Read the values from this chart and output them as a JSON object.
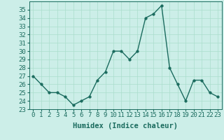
{
  "x": [
    0,
    1,
    2,
    3,
    4,
    5,
    6,
    7,
    8,
    9,
    10,
    11,
    12,
    13,
    14,
    15,
    16,
    17,
    18,
    19,
    20,
    21,
    22,
    23
  ],
  "y": [
    27,
    26,
    25,
    25,
    24.5,
    23.5,
    24,
    24.5,
    26.5,
    27.5,
    30,
    30,
    29,
    30,
    34,
    34.5,
    35.5,
    28,
    26,
    24,
    26.5,
    26.5,
    25,
    24.5
  ],
  "line_color": "#1a6b5e",
  "marker": "o",
  "marker_size": 2.5,
  "background_color": "#cceee8",
  "grid_color": "#aaddcc",
  "xlabel": "Humidex (Indice chaleur)",
  "ylim": [
    23,
    36
  ],
  "xlim": [
    -0.5,
    23.5
  ],
  "yticks": [
    23,
    24,
    25,
    26,
    27,
    28,
    29,
    30,
    31,
    32,
    33,
    34,
    35
  ],
  "xticks": [
    0,
    1,
    2,
    3,
    4,
    5,
    6,
    7,
    8,
    9,
    10,
    11,
    12,
    13,
    14,
    15,
    16,
    17,
    18,
    19,
    20,
    21,
    22,
    23
  ],
  "xlabel_fontsize": 7.5,
  "tick_fontsize": 6.5,
  "linewidth": 1.0,
  "text_color": "#1a6b5e"
}
